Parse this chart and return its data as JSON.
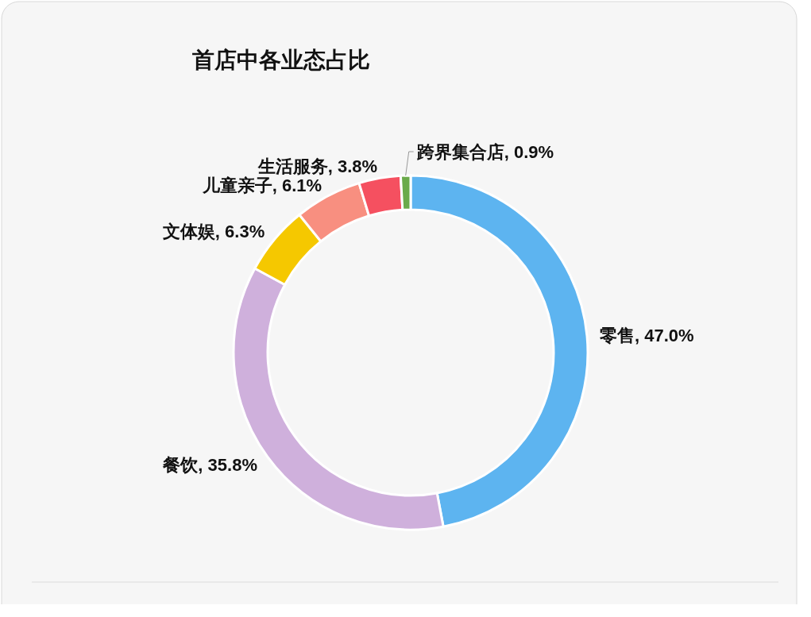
{
  "chart_data": {
    "type": "donut",
    "title": "首店中各业态占比",
    "categories": [
      "零售",
      "餐饮",
      "文体娱",
      "儿童亲子",
      "生活服务",
      "跨界集合店"
    ],
    "values": [
      47.0,
      35.8,
      6.3,
      6.1,
      3.8,
      0.9
    ],
    "value_labels": [
      "47.0%",
      "35.8%",
      "6.3%",
      "6.1%",
      "3.8%",
      "0.9%"
    ],
    "colors": [
      "#5db4f0",
      "#cfb0dc",
      "#f5c800",
      "#f88f80",
      "#f55060",
      "#6aaa4a"
    ]
  }
}
